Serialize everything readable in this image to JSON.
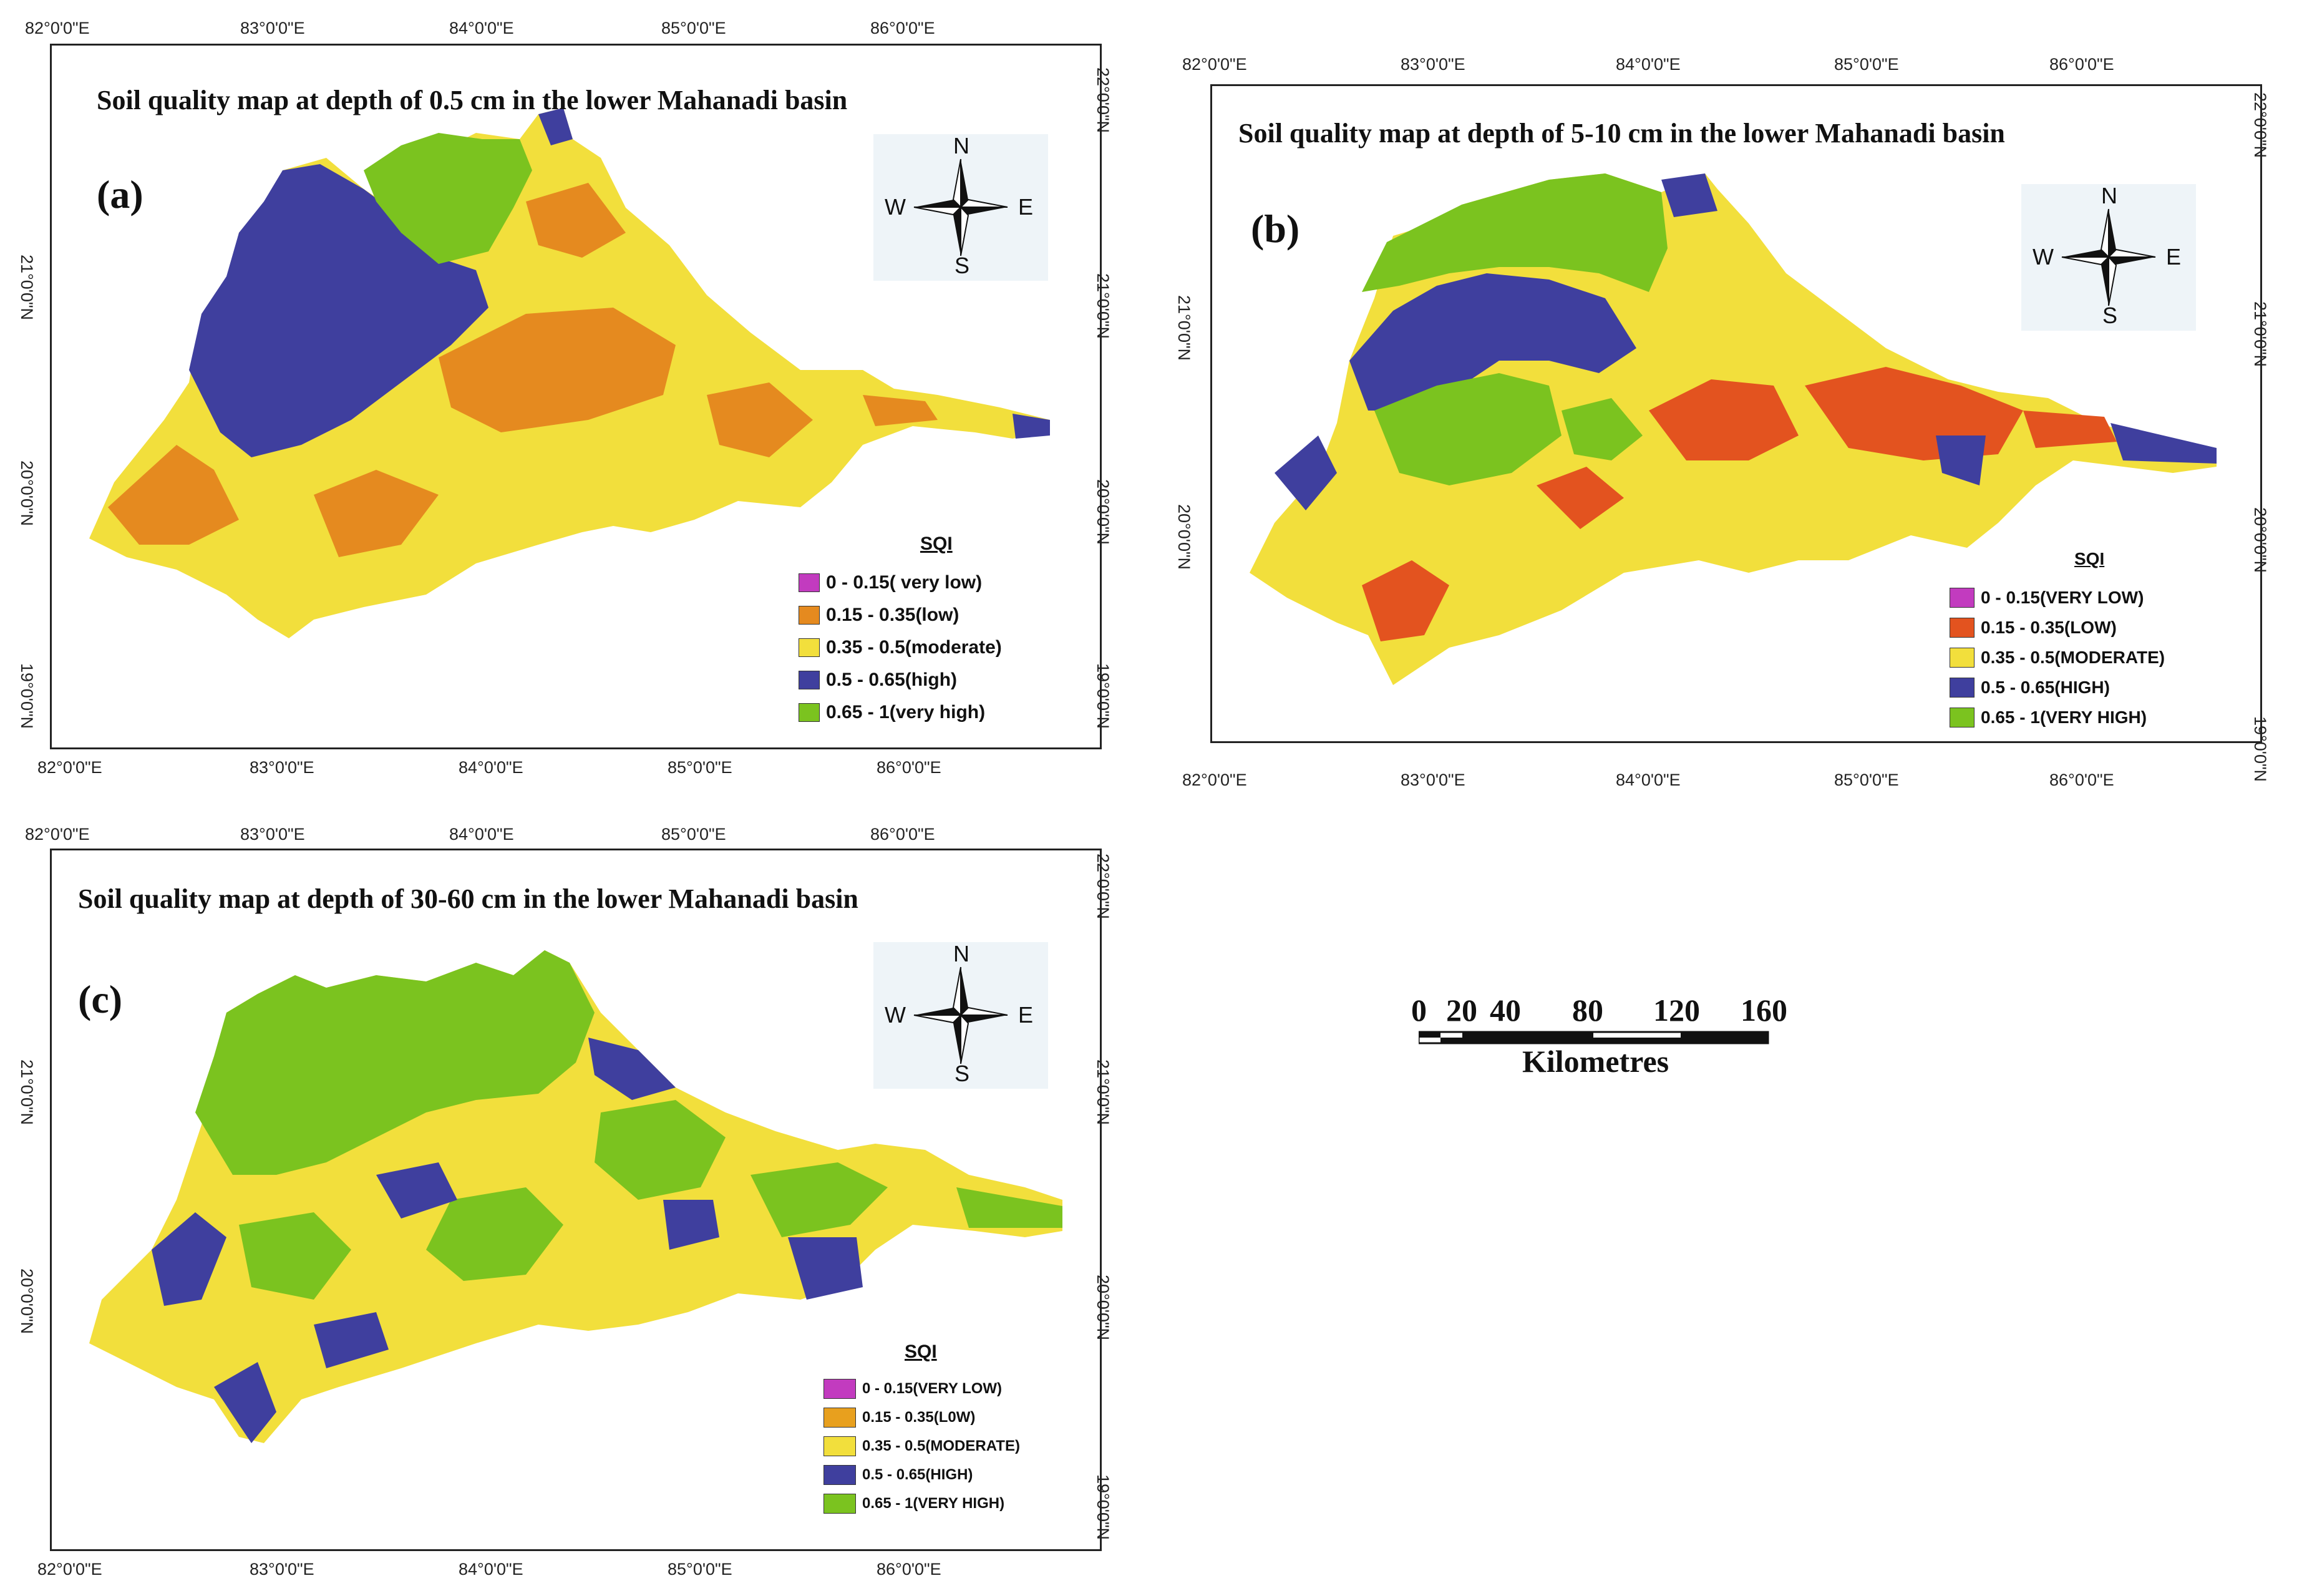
{
  "colors": {
    "very_low": "#c23bbf",
    "low_a": "#e58a1f",
    "low_b": "#e3531f",
    "low_c": "#e8a01e",
    "moderate": "#f2df3c",
    "high": "#3f3f9e",
    "very_high": "#7bc31f"
  },
  "panels": [
    {
      "id": "a",
      "label": "(a)",
      "title": "Soil quality map at depth of 0.5 cm in the lower Mahanadi basin",
      "lon_ticks": [
        "82°0'0\"E",
        "83°0'0\"E",
        "84°0'0\"E",
        "85°0'0\"E",
        "86°0'0\"E"
      ],
      "lat_ticks": [
        "22°0'0\"N",
        "21°0'0\"N",
        "20°0'0\"N",
        "19°0'0\"N"
      ],
      "lat_ticks_left": [
        "21°0'0\"N",
        "20°0'0\"N",
        "19°0'0\"N"
      ],
      "compass": {
        "n": "N",
        "s": "S",
        "e": "E",
        "w": "W"
      },
      "legend": {
        "heading": "SQI",
        "items": [
          {
            "label": "0 - 0.15( very low)",
            "color": "#c23bbf"
          },
          {
            "label": "0.15 - 0.35(low)",
            "color": "#e58a1f"
          },
          {
            "label": "0.35 - 0.5(moderate)",
            "color": "#f2df3c"
          },
          {
            "label": "0.5 - 0.65(high)",
            "color": "#3f3f9e"
          },
          {
            "label": "0.65 - 1(very high)",
            "color": "#7bc31f"
          }
        ]
      }
    },
    {
      "id": "b",
      "label": "(b)",
      "title": "Soil quality map at depth of 5-10 cm in the lower Mahanadi basin",
      "lon_ticks": [
        "82°0'0\"E",
        "83°0'0\"E",
        "84°0'0\"E",
        "85°0'0\"E",
        "86°0'0\"E"
      ],
      "lat_ticks": [
        "22°0'0\"N",
        "21°0'0\"N",
        "20°0'0\"N",
        "19°0'0\"N"
      ],
      "lat_ticks_left": [
        "21°0'0\"N",
        "20°0'0\"N"
      ],
      "compass": {
        "n": "N",
        "s": "S",
        "e": "E",
        "w": "W"
      },
      "legend": {
        "heading": "SQI",
        "items": [
          {
            "label": "0 - 0.15(VERY LOW)",
            "color": "#c23bbf"
          },
          {
            "label": "0.15 - 0.35(LOW)",
            "color": "#e3531f"
          },
          {
            "label": "0.35 - 0.5(MODERATE)",
            "color": "#f2df3c"
          },
          {
            "label": "0.5 - 0.65(HIGH)",
            "color": "#3f3f9e"
          },
          {
            "label": "0.65 - 1(VERY HIGH)",
            "color": "#7bc31f"
          }
        ]
      }
    },
    {
      "id": "c",
      "label": "(c)",
      "title": "Soil quality map at depth of 30-60 cm in the lower Mahanadi basin",
      "lon_ticks": [
        "82°0'0\"E",
        "83°0'0\"E",
        "84°0'0\"E",
        "85°0'0\"E",
        "86°0'0\"E"
      ],
      "lat_ticks": [
        "22°0'0\"N",
        "21°0'0\"N",
        "20°0'0\"N",
        "19°0'0\"N"
      ],
      "lat_ticks_left": [
        "21°0'0\"N",
        "20°0'0\"N"
      ],
      "compass": {
        "n": "N",
        "s": "S",
        "e": "E",
        "w": "W"
      },
      "legend": {
        "heading": "SQI",
        "items": [
          {
            "label": "0 - 0.15(VERY LOW)",
            "color": "#c23bbf"
          },
          {
            "label": "0.15 - 0.35(L0W)",
            "color": "#e8a01e"
          },
          {
            "label": "0.35 - 0.5(MODERATE)",
            "color": "#f2df3c"
          },
          {
            "label": "0.5 - 0.65(HIGH)",
            "color": "#3f3f9e"
          },
          {
            "label": "0.65 - 1(VERY HIGH)",
            "color": "#7bc31f"
          }
        ]
      }
    }
  ],
  "scale_bar": {
    "ticks": [
      "0",
      "20",
      "40",
      "80",
      "120",
      "160"
    ],
    "unit": "Kilometres"
  }
}
